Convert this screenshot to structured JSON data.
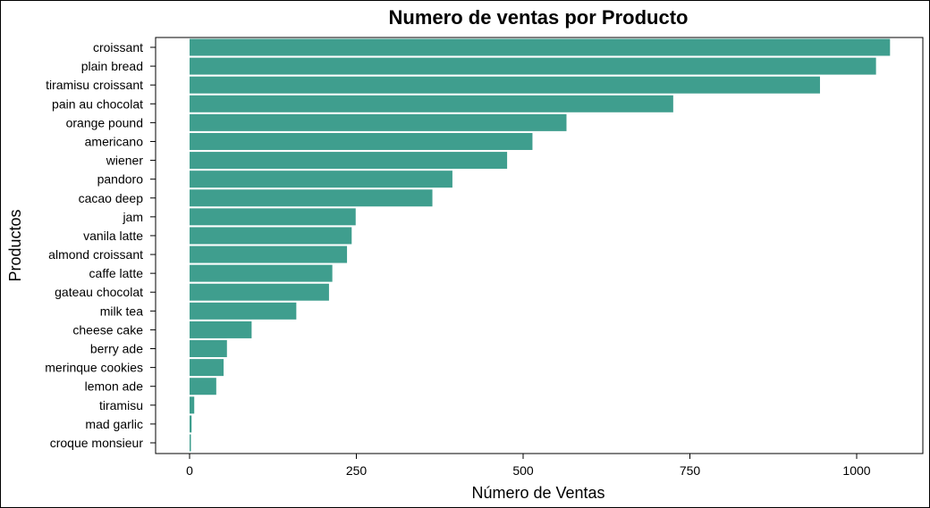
{
  "chart_data": {
    "type": "bar",
    "orientation": "horizontal",
    "title": "Numero de ventas por Producto",
    "xlabel": "Número de Ventas",
    "ylabel": "Productos",
    "xlim": [
      0,
      1100
    ],
    "xticks": [
      0,
      250,
      500,
      750,
      1000
    ],
    "grid": false,
    "bar_color": "#3f9e8e",
    "categories": [
      "croissant",
      "plain bread",
      "tiramisu croissant",
      "pain au chocolat",
      "orange pound",
      "americano",
      "wiener",
      "pandoro",
      "cacao deep",
      "jam",
      "vanila latte",
      "almond croissant",
      "caffe latte",
      "gateau chocolat",
      "milk tea",
      "cheese cake",
      "berry ade",
      "merinque cookies",
      "lemon ade",
      "tiramisu",
      "mad garlic",
      "croque monsieur"
    ],
    "values": [
      1050,
      1029,
      945,
      725,
      565,
      514,
      476,
      394,
      364,
      249,
      243,
      236,
      214,
      209,
      160,
      93,
      56,
      51,
      40,
      7,
      3,
      2
    ]
  }
}
